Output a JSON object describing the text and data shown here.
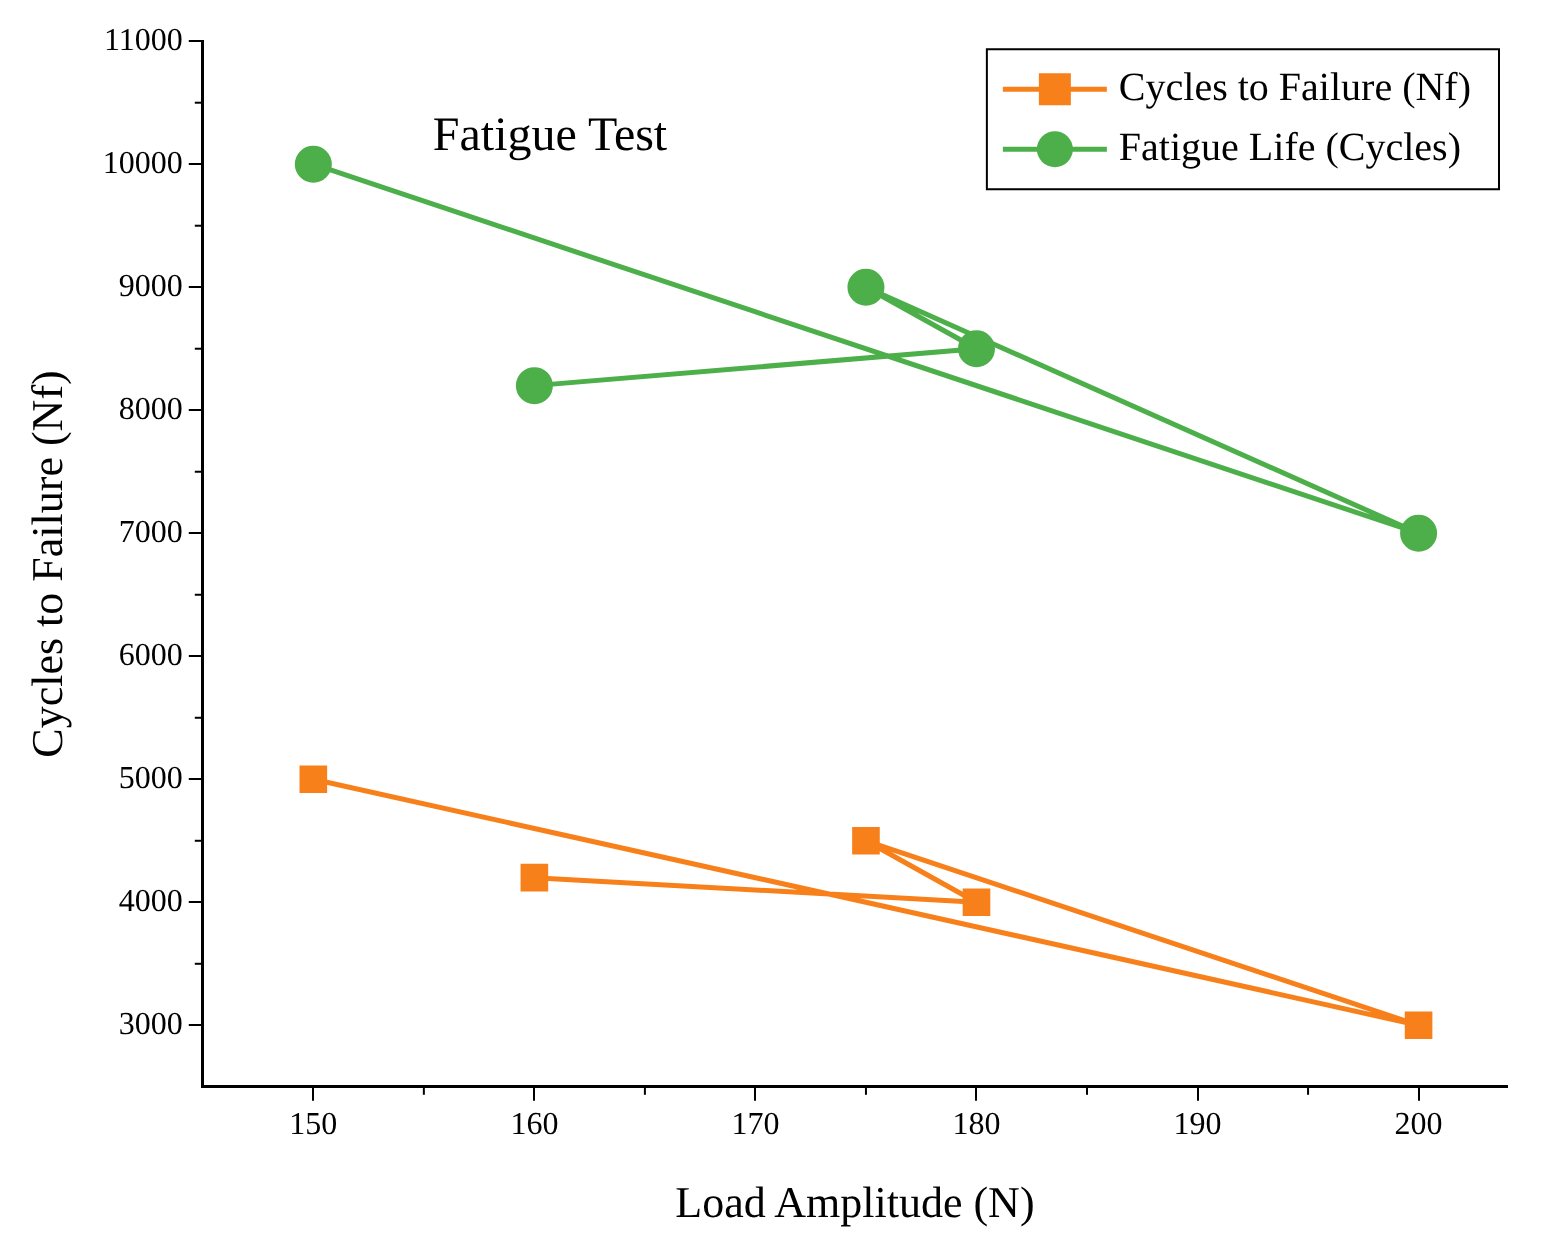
{
  "chart_data": {
    "type": "line",
    "title": "Fatigue Test",
    "xlabel": "Load Amplitude (N)",
    "ylabel": "Cycles to Failure (Nf)",
    "xlim": [
      145,
      204
    ],
    "xticks": [
      150,
      160,
      170,
      180,
      190,
      200
    ],
    "ylim": [
      2500,
      11000
    ],
    "yticks": [
      3000,
      4000,
      5000,
      6000,
      7000,
      8000,
      9000,
      10000,
      11000
    ],
    "grid": false,
    "legend": "top right",
    "line_style": "solid",
    "series": [
      {
        "name": "Cycles to Failure (Nf)",
        "color": "#f7801b",
        "marker": "square",
        "x": [
          160,
          180,
          175,
          200,
          150
        ],
        "values": [
          4200,
          4000,
          4500,
          3000,
          5000
        ]
      },
      {
        "name": "Fatigue Life (Cycles)",
        "color": "#4caf4a",
        "marker": "circle",
        "x": [
          160,
          180,
          175,
          200,
          150
        ],
        "values": [
          8200,
          8500,
          9000,
          7000,
          10000
        ]
      }
    ]
  }
}
